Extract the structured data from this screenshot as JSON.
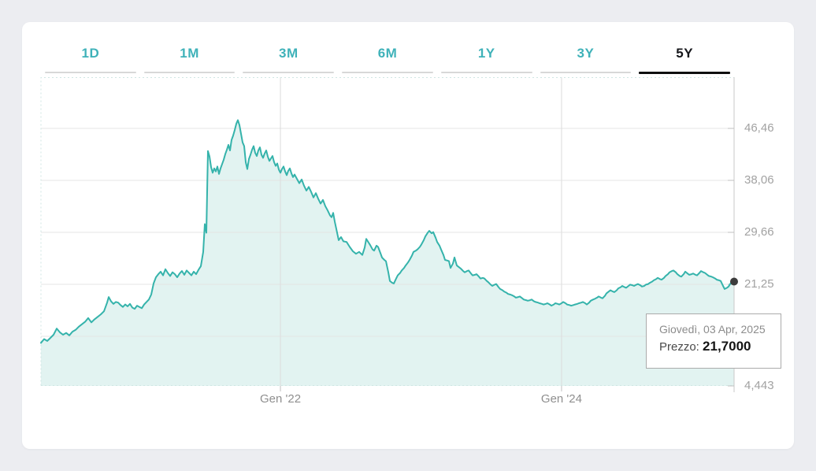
{
  "tabs": {
    "items": [
      "1D",
      "1M",
      "3M",
      "6M",
      "1Y",
      "3Y",
      "5Y"
    ],
    "active": "5Y"
  },
  "tooltip": {
    "date": "Giovedì, 03 Apr, 2025",
    "price_label": "Prezzo:",
    "price_value": "21,7000"
  },
  "colors": {
    "line": "#35b3ab",
    "fill": "#e2f3f1",
    "hgrid": "#e4e4e4",
    "vgrid": "#dcdcdc",
    "axis": "#c9c9c9",
    "tick": "#c0c0c0",
    "dashed_border": "#cfe6e3",
    "marker": "#3c3c3c",
    "tab_teal": "#3fb2b9",
    "tab_active": "#15161a",
    "label": "#a2a2a2"
  },
  "chart_data": {
    "type": "area",
    "title": "",
    "xlabel": "",
    "ylabel": "",
    "legend": false,
    "grid": true,
    "ylim": [
      4.83,
      54.74
    ],
    "y_ticks": [
      {
        "label": "46,46",
        "value": 46.46
      },
      {
        "label": "38,06",
        "value": 38.06
      },
      {
        "label": "29,66",
        "value": 29.66
      },
      {
        "label": "21,25",
        "value": 21.25
      },
      {
        "label": "",
        "value": 12.85
      },
      {
        "label": "4,443",
        "value": 4.443
      }
    ],
    "x_ticks": [
      {
        "label": "Gen '22",
        "f": 0.3455
      },
      {
        "label": "Gen '24",
        "f": 0.7511
      }
    ],
    "end_marker": {
      "f": 1.0,
      "price": 21.7
    },
    "points": [
      [
        0.0,
        11.8
      ],
      [
        0.0045,
        12.4
      ],
      [
        0.0091,
        12.1
      ],
      [
        0.0136,
        12.6
      ],
      [
        0.0182,
        13.1
      ],
      [
        0.0227,
        14.1
      ],
      [
        0.0273,
        13.5
      ],
      [
        0.0318,
        13.1
      ],
      [
        0.0364,
        13.4
      ],
      [
        0.0409,
        13.0
      ],
      [
        0.0455,
        13.6
      ],
      [
        0.05,
        13.9
      ],
      [
        0.0545,
        14.4
      ],
      [
        0.0591,
        14.8
      ],
      [
        0.0636,
        15.2
      ],
      [
        0.0682,
        15.8
      ],
      [
        0.0727,
        15.1
      ],
      [
        0.0773,
        15.6
      ],
      [
        0.0818,
        16.0
      ],
      [
        0.0864,
        16.4
      ],
      [
        0.0909,
        16.9
      ],
      [
        0.0955,
        18.3
      ],
      [
        0.0977,
        19.2
      ],
      [
        0.1011,
        18.5
      ],
      [
        0.1045,
        18.1
      ],
      [
        0.108,
        18.4
      ],
      [
        0.1114,
        18.3
      ],
      [
        0.1148,
        17.9
      ],
      [
        0.1182,
        17.6
      ],
      [
        0.1216,
        18.0
      ],
      [
        0.125,
        17.7
      ],
      [
        0.1284,
        18.1
      ],
      [
        0.1318,
        17.5
      ],
      [
        0.1352,
        17.3
      ],
      [
        0.1386,
        17.8
      ],
      [
        0.142,
        17.6
      ],
      [
        0.1455,
        17.4
      ],
      [
        0.1489,
        18.0
      ],
      [
        0.1523,
        18.4
      ],
      [
        0.1557,
        18.8
      ],
      [
        0.1591,
        19.6
      ],
      [
        0.1625,
        21.4
      ],
      [
        0.1659,
        22.4
      ],
      [
        0.1693,
        22.9
      ],
      [
        0.1727,
        23.3
      ],
      [
        0.1761,
        22.7
      ],
      [
        0.1795,
        23.7
      ],
      [
        0.183,
        23.1
      ],
      [
        0.1864,
        22.6
      ],
      [
        0.1898,
        23.2
      ],
      [
        0.1932,
        22.9
      ],
      [
        0.1966,
        22.4
      ],
      [
        0.2,
        23.0
      ],
      [
        0.2034,
        23.4
      ],
      [
        0.2068,
        22.8
      ],
      [
        0.2102,
        23.5
      ],
      [
        0.2136,
        23.1
      ],
      [
        0.217,
        22.7
      ],
      [
        0.2205,
        23.3
      ],
      [
        0.2239,
        22.9
      ],
      [
        0.2273,
        23.6
      ],
      [
        0.2307,
        24.2
      ],
      [
        0.2341,
        26.5
      ],
      [
        0.2364,
        31.0
      ],
      [
        0.2386,
        29.6
      ],
      [
        0.2409,
        42.8
      ],
      [
        0.2432,
        41.9
      ],
      [
        0.2455,
        40.2
      ],
      [
        0.2477,
        39.3
      ],
      [
        0.25,
        40.0
      ],
      [
        0.2523,
        39.5
      ],
      [
        0.2545,
        40.3
      ],
      [
        0.2568,
        39.1
      ],
      [
        0.2591,
        40.0
      ],
      [
        0.2614,
        40.7
      ],
      [
        0.2636,
        41.4
      ],
      [
        0.2659,
        42.3
      ],
      [
        0.2682,
        43.0
      ],
      [
        0.2705,
        43.8
      ],
      [
        0.2727,
        42.9
      ],
      [
        0.275,
        44.6
      ],
      [
        0.2773,
        45.3
      ],
      [
        0.2795,
        46.2
      ],
      [
        0.2818,
        47.2
      ],
      [
        0.2841,
        47.8
      ],
      [
        0.2864,
        47.0
      ],
      [
        0.2886,
        45.6
      ],
      [
        0.2909,
        44.2
      ],
      [
        0.2932,
        43.6
      ],
      [
        0.2955,
        41.0
      ],
      [
        0.2977,
        39.9
      ],
      [
        0.3,
        41.5
      ],
      [
        0.3023,
        42.2
      ],
      [
        0.3045,
        43.0
      ],
      [
        0.3068,
        43.6
      ],
      [
        0.3091,
        42.5
      ],
      [
        0.3114,
        42.0
      ],
      [
        0.3136,
        42.9
      ],
      [
        0.3159,
        43.4
      ],
      [
        0.3182,
        42.2
      ],
      [
        0.3205,
        41.7
      ],
      [
        0.3227,
        42.4
      ],
      [
        0.325,
        42.9
      ],
      [
        0.3273,
        41.9
      ],
      [
        0.3295,
        41.2
      ],
      [
        0.3318,
        41.6
      ],
      [
        0.3341,
        42.0
      ],
      [
        0.3364,
        41.0
      ],
      [
        0.3386,
        40.4
      ],
      [
        0.3409,
        40.8
      ],
      [
        0.3432,
        39.8
      ],
      [
        0.3455,
        39.3
      ],
      [
        0.3477,
        39.9
      ],
      [
        0.35,
        40.3
      ],
      [
        0.3523,
        39.5
      ],
      [
        0.3545,
        38.9
      ],
      [
        0.3568,
        39.6
      ],
      [
        0.3591,
        40.0
      ],
      [
        0.3614,
        39.2
      ],
      [
        0.3636,
        38.6
      ],
      [
        0.3659,
        39.0
      ],
      [
        0.3693,
        38.3
      ],
      [
        0.3727,
        37.6
      ],
      [
        0.3761,
        38.2
      ],
      [
        0.3795,
        37.2
      ],
      [
        0.383,
        36.4
      ],
      [
        0.3864,
        37.0
      ],
      [
        0.3898,
        36.2
      ],
      [
        0.3932,
        35.3
      ],
      [
        0.3966,
        36.0
      ],
      [
        0.4,
        35.1
      ],
      [
        0.4034,
        34.3
      ],
      [
        0.4068,
        34.9
      ],
      [
        0.4102,
        33.9
      ],
      [
        0.4136,
        33.2
      ],
      [
        0.417,
        32.4
      ],
      [
        0.4193,
        32.1
      ],
      [
        0.4216,
        32.8
      ],
      [
        0.4239,
        31.4
      ],
      [
        0.4261,
        30.2
      ],
      [
        0.4295,
        28.4
      ],
      [
        0.433,
        28.9
      ],
      [
        0.4364,
        28.2
      ],
      [
        0.4409,
        28.1
      ],
      [
        0.4455,
        27.3
      ],
      [
        0.45,
        26.6
      ],
      [
        0.4545,
        26.2
      ],
      [
        0.4591,
        26.5
      ],
      [
        0.4636,
        26.0
      ],
      [
        0.467,
        27.2
      ],
      [
        0.4693,
        28.6
      ],
      [
        0.4727,
        28.0
      ],
      [
        0.475,
        27.6
      ],
      [
        0.4784,
        26.9
      ],
      [
        0.4807,
        26.7
      ],
      [
        0.4841,
        27.5
      ],
      [
        0.4864,
        27.3
      ],
      [
        0.4898,
        26.3
      ],
      [
        0.492,
        25.6
      ],
      [
        0.4955,
        25.2
      ],
      [
        0.4977,
        25.0
      ],
      [
        0.5011,
        23.2
      ],
      [
        0.5034,
        21.8
      ],
      [
        0.5068,
        21.5
      ],
      [
        0.5091,
        21.4
      ],
      [
        0.5125,
        22.2
      ],
      [
        0.5148,
        22.7
      ],
      [
        0.5182,
        23.1
      ],
      [
        0.5205,
        23.5
      ],
      [
        0.5239,
        23.9
      ],
      [
        0.5261,
        24.3
      ],
      [
        0.5295,
        24.8
      ],
      [
        0.5318,
        25.2
      ],
      [
        0.5352,
        25.9
      ],
      [
        0.5375,
        26.5
      ],
      [
        0.5409,
        26.7
      ],
      [
        0.5432,
        26.9
      ],
      [
        0.5466,
        27.3
      ],
      [
        0.5489,
        27.7
      ],
      [
        0.5523,
        28.4
      ],
      [
        0.5545,
        29.0
      ],
      [
        0.558,
        29.6
      ],
      [
        0.5602,
        29.9
      ],
      [
        0.5636,
        29.5
      ],
      [
        0.5659,
        29.7
      ],
      [
        0.5693,
        28.8
      ],
      [
        0.5716,
        28.1
      ],
      [
        0.575,
        27.5
      ],
      [
        0.5773,
        26.9
      ],
      [
        0.5807,
        26.0
      ],
      [
        0.583,
        25.2
      ],
      [
        0.5864,
        25.1
      ],
      [
        0.5886,
        25.0
      ],
      [
        0.5909,
        23.9
      ],
      [
        0.5943,
        24.6
      ],
      [
        0.5966,
        25.6
      ],
      [
        0.6,
        24.3
      ],
      [
        0.6034,
        24.0
      ],
      [
        0.6057,
        23.8
      ],
      [
        0.6091,
        23.4
      ],
      [
        0.6114,
        23.2
      ],
      [
        0.6148,
        23.4
      ],
      [
        0.617,
        23.5
      ],
      [
        0.6205,
        23.0
      ],
      [
        0.6227,
        22.7
      ],
      [
        0.6261,
        22.8
      ],
      [
        0.6284,
        22.9
      ],
      [
        0.6318,
        22.5
      ],
      [
        0.6341,
        22.2
      ],
      [
        0.6375,
        22.3
      ],
      [
        0.6398,
        22.2
      ],
      [
        0.6432,
        21.8
      ],
      [
        0.6455,
        21.6
      ],
      [
        0.6489,
        21.2
      ],
      [
        0.6511,
        21.0
      ],
      [
        0.6545,
        21.2
      ],
      [
        0.6568,
        21.3
      ],
      [
        0.6602,
        20.8
      ],
      [
        0.6625,
        20.5
      ],
      [
        0.6659,
        20.3
      ],
      [
        0.6682,
        20.1
      ],
      [
        0.6716,
        19.9
      ],
      [
        0.6739,
        19.7
      ],
      [
        0.6773,
        19.6
      ],
      [
        0.6795,
        19.5
      ],
      [
        0.683,
        19.3
      ],
      [
        0.6852,
        19.1
      ],
      [
        0.6886,
        19.2
      ],
      [
        0.6909,
        19.3
      ],
      [
        0.6943,
        19.0
      ],
      [
        0.6966,
        18.8
      ],
      [
        0.7,
        18.7
      ],
      [
        0.7023,
        18.6
      ],
      [
        0.7057,
        18.7
      ],
      [
        0.708,
        18.8
      ],
      [
        0.7114,
        18.5
      ],
      [
        0.7136,
        18.4
      ],
      [
        0.717,
        18.3
      ],
      [
        0.7193,
        18.2
      ],
      [
        0.7227,
        18.1
      ],
      [
        0.725,
        18.0
      ],
      [
        0.7284,
        18.1
      ],
      [
        0.7307,
        18.2
      ],
      [
        0.7341,
        18.0
      ],
      [
        0.7364,
        17.8
      ],
      [
        0.7398,
        18.0
      ],
      [
        0.742,
        18.2
      ],
      [
        0.7455,
        18.1
      ],
      [
        0.7477,
        18.0
      ],
      [
        0.7511,
        18.2
      ],
      [
        0.7534,
        18.4
      ],
      [
        0.7568,
        18.2
      ],
      [
        0.7591,
        18.0
      ],
      [
        0.7625,
        17.9
      ],
      [
        0.7648,
        17.8
      ],
      [
        0.7682,
        17.9
      ],
      [
        0.7705,
        18.0
      ],
      [
        0.7739,
        18.1
      ],
      [
        0.7761,
        18.2
      ],
      [
        0.7795,
        18.3
      ],
      [
        0.7818,
        18.4
      ],
      [
        0.7852,
        18.2
      ],
      [
        0.7875,
        18.0
      ],
      [
        0.7909,
        18.3
      ],
      [
        0.7932,
        18.6
      ],
      [
        0.7966,
        18.8
      ],
      [
        0.7989,
        18.9
      ],
      [
        0.8023,
        19.1
      ],
      [
        0.8045,
        19.3
      ],
      [
        0.808,
        19.1
      ],
      [
        0.8102,
        19.0
      ],
      [
        0.8136,
        19.4
      ],
      [
        0.8159,
        19.8
      ],
      [
        0.8193,
        20.1
      ],
      [
        0.8216,
        20.3
      ],
      [
        0.825,
        20.1
      ],
      [
        0.8273,
        20.0
      ],
      [
        0.8307,
        20.3
      ],
      [
        0.833,
        20.6
      ],
      [
        0.8364,
        20.8
      ],
      [
        0.8386,
        21.0
      ],
      [
        0.842,
        20.8
      ],
      [
        0.8443,
        20.7
      ],
      [
        0.8477,
        21.0
      ],
      [
        0.85,
        21.2
      ],
      [
        0.8534,
        21.1
      ],
      [
        0.8557,
        21.0
      ],
      [
        0.8591,
        21.2
      ],
      [
        0.8614,
        21.3
      ],
      [
        0.8648,
        21.1
      ],
      [
        0.867,
        20.9
      ],
      [
        0.8705,
        21.0
      ],
      [
        0.8727,
        21.2
      ],
      [
        0.8761,
        21.3
      ],
      [
        0.8784,
        21.5
      ],
      [
        0.8818,
        21.7
      ],
      [
        0.8841,
        21.9
      ],
      [
        0.8875,
        22.1
      ],
      [
        0.8898,
        22.3
      ],
      [
        0.8932,
        22.1
      ],
      [
        0.8955,
        22.0
      ],
      [
        0.8989,
        22.3
      ],
      [
        0.9011,
        22.6
      ],
      [
        0.9045,
        22.9
      ],
      [
        0.9068,
        23.2
      ],
      [
        0.9102,
        23.4
      ],
      [
        0.9125,
        23.5
      ],
      [
        0.9159,
        23.2
      ],
      [
        0.9182,
        22.9
      ],
      [
        0.9216,
        22.6
      ],
      [
        0.9239,
        22.5
      ],
      [
        0.9273,
        22.9
      ],
      [
        0.9295,
        23.3
      ],
      [
        0.933,
        23.0
      ],
      [
        0.9352,
        22.8
      ],
      [
        0.9386,
        22.9
      ],
      [
        0.9409,
        23.0
      ],
      [
        0.9443,
        22.8
      ],
      [
        0.9466,
        22.7
      ],
      [
        0.95,
        23.1
      ],
      [
        0.9523,
        23.4
      ],
      [
        0.9557,
        23.2
      ],
      [
        0.958,
        23.1
      ],
      [
        0.9614,
        22.8
      ],
      [
        0.9636,
        22.6
      ],
      [
        0.967,
        22.5
      ],
      [
        0.9693,
        22.4
      ],
      [
        0.9727,
        22.2
      ],
      [
        0.975,
        22.0
      ],
      [
        0.9784,
        21.9
      ],
      [
        0.9807,
        21.8
      ],
      [
        0.9841,
        21.0
      ],
      [
        0.9864,
        20.5
      ],
      [
        0.9898,
        20.7
      ],
      [
        0.992,
        20.9
      ],
      [
        0.9955,
        21.5
      ],
      [
        1.0,
        21.7
      ]
    ]
  }
}
